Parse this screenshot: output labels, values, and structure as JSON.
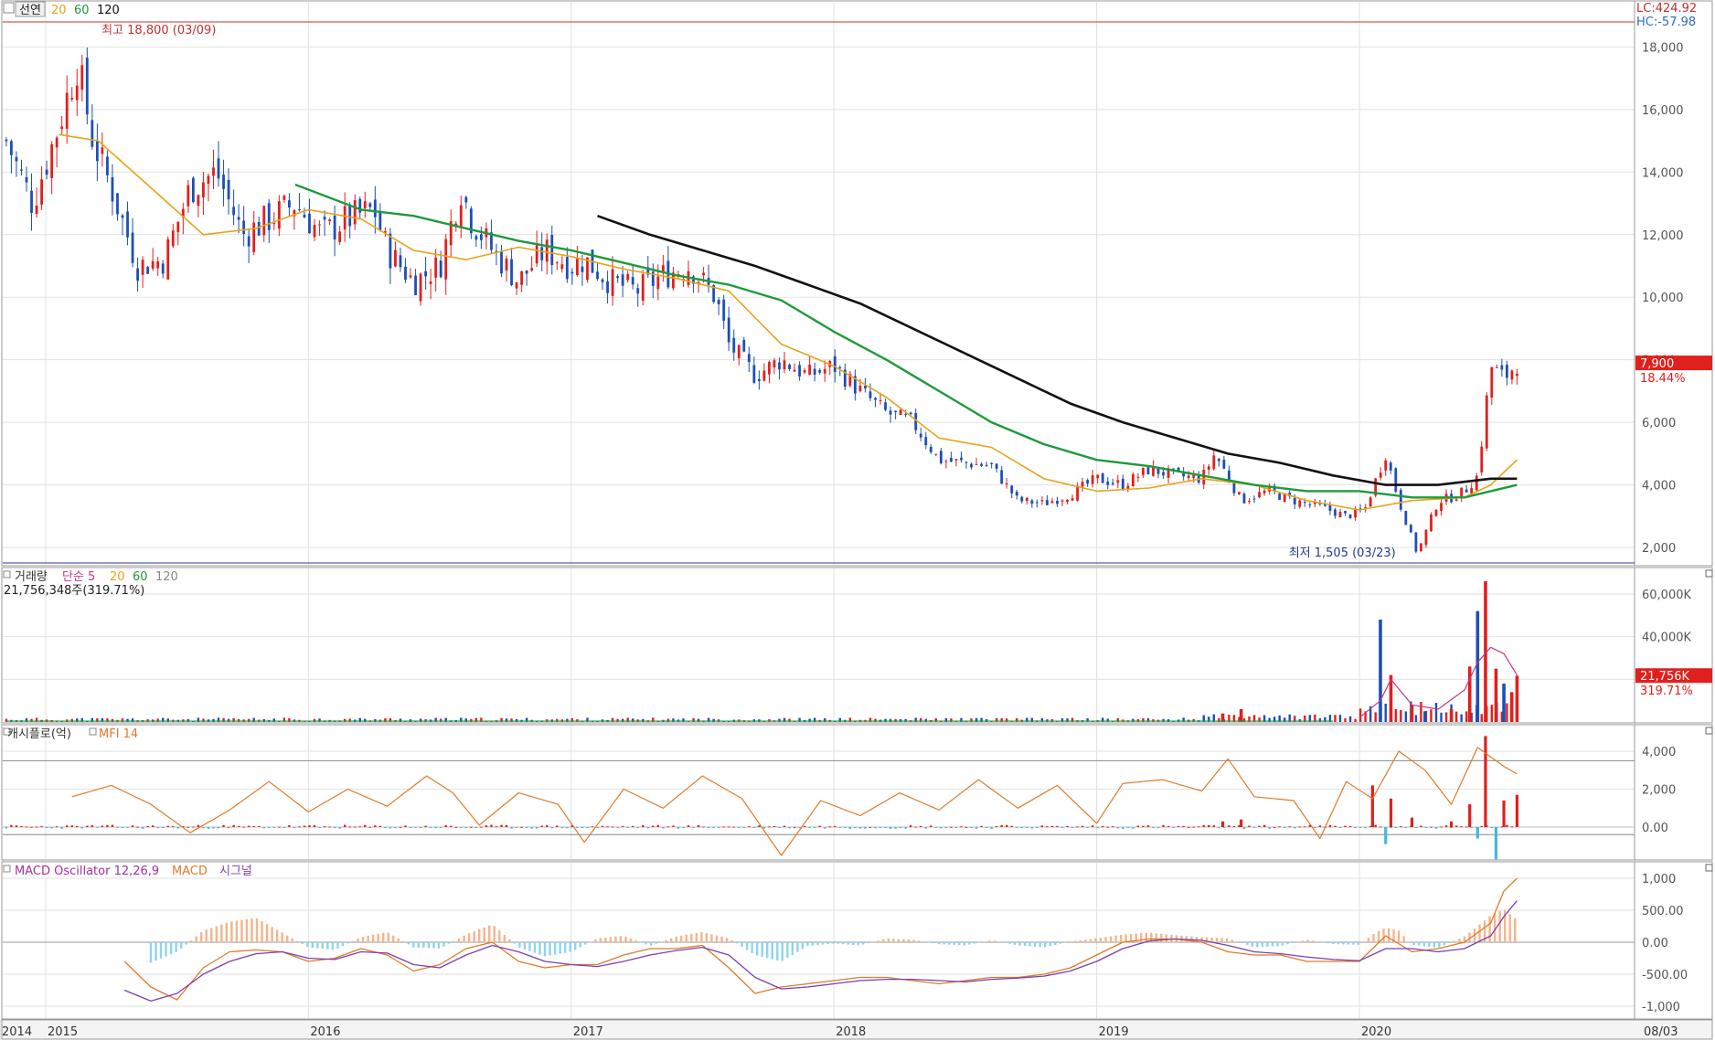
{
  "price_panel": {
    "tab_label": "선연",
    "ma_labels": [
      "20",
      "60",
      "120"
    ],
    "high_label": "최고 18,800 (03/09)",
    "low_label": "최저 1,505 (03/23)",
    "lc_label": "LC:424.92",
    "hc_label": "HC:-57.98",
    "last_price_label": "7,900",
    "last_change_label": "18.44%"
  },
  "volume_panel": {
    "title": "거래량",
    "ma_labels": [
      "단순 5",
      "20",
      "60",
      "120"
    ],
    "value_text": "21,756,348주(319.71%)",
    "last_label": "21,756K",
    "last_pct_label": "319.71%"
  },
  "cashflow_panel": {
    "title": "캐시플로(억)",
    "mfi_label": "MFI 14"
  },
  "macd_panel": {
    "title": "MACD Oscillator 12,26,9",
    "macd_label": "MACD",
    "signal_label": "시그널"
  },
  "x_axis": {
    "labels": [
      "2014",
      "2015",
      "2016",
      "2017",
      "2018",
      "2019",
      "2020",
      "08/03"
    ]
  },
  "colors": {
    "up": "#e0201c",
    "down": "#1c4fb8",
    "ma20": "#e8a317",
    "ma60": "#1e9a3c",
    "ma120": "#111111",
    "mfi_line": "#e07a2a",
    "macd_line": "#e07a2a",
    "signal_line": "#7b3fb0",
    "osc_pos": "#f3b58b",
    "osc_neg": "#8ed4ee",
    "high_line": "#c03030",
    "low_line": "#283890"
  },
  "chart_data": [
    {
      "type": "candlestick",
      "name": "price",
      "x_range": [
        "2014-11",
        "2020-08"
      ],
      "ylim": [
        1505,
        18800
      ],
      "yticks": [
        2000,
        4000,
        6000,
        8000,
        10000,
        12000,
        14000,
        16000,
        18000
      ],
      "ytick_labels": [
        "2,000",
        "4,000",
        "6,000",
        "8,000",
        "10,000",
        "12,000",
        "14,000",
        "16,000",
        "18,000"
      ],
      "close_series": {
        "x": [
          2014.85,
          2014.95,
          2015.05,
          2015.12,
          2015.18,
          2015.25,
          2015.35,
          2015.45,
          2015.55,
          2015.65,
          2015.75,
          2015.85,
          2015.95,
          2016.05,
          2016.15,
          2016.25,
          2016.3,
          2016.4,
          2016.5,
          2016.58,
          2016.62,
          2016.7,
          2016.8,
          2016.9,
          2017.0,
          2017.05,
          2017.15,
          2017.25,
          2017.35,
          2017.45,
          2017.55,
          2017.6,
          2017.7,
          2017.8,
          2017.9,
          2018.0,
          2018.1,
          2018.2,
          2018.3,
          2018.4,
          2018.5,
          2018.6,
          2018.7,
          2018.8,
          2018.9,
          2019.0,
          2019.1,
          2019.2,
          2019.3,
          2019.4,
          2019.45,
          2019.55,
          2019.65,
          2019.75,
          2019.85,
          2019.95,
          2020.02,
          2020.1,
          2020.15,
          2020.22,
          2020.3,
          2020.35,
          2020.4,
          2020.45,
          2020.5,
          2020.55,
          2020.6
        ],
        "y": [
          15000,
          13000,
          15500,
          17500,
          15000,
          13500,
          11000,
          11200,
          13500,
          14000,
          12000,
          12500,
          13000,
          12000,
          12500,
          12800,
          11500,
          10500,
          11000,
          13500,
          12500,
          11500,
          10500,
          11500,
          11000,
          11200,
          10500,
          10200,
          10700,
          11000,
          10000,
          8500,
          7500,
          8000,
          7500,
          7800,
          7000,
          6300,
          6000,
          4800,
          4700,
          4600,
          3500,
          3400,
          3700,
          4200,
          4000,
          4500,
          4300,
          4200,
          5000,
          3500,
          3800,
          3500,
          3300,
          3000,
          3200,
          5000,
          3500,
          1800,
          3500,
          3600,
          3800,
          4300,
          7800,
          7400,
          7900
        ]
      },
      "ma20": {
        "x": [
          2015.05,
          2015.2,
          2015.4,
          2015.6,
          2015.8,
          2016.0,
          2016.2,
          2016.4,
          2016.6,
          2016.8,
          2017.0,
          2017.2,
          2017.4,
          2017.6,
          2017.8,
          2018.0,
          2018.2,
          2018.4,
          2018.6,
          2018.8,
          2019.0,
          2019.2,
          2019.4,
          2019.6,
          2019.8,
          2020.0,
          2020.2,
          2020.4,
          2020.5,
          2020.6
        ],
        "y": [
          15200,
          15000,
          13500,
          12000,
          12200,
          12800,
          12500,
          11500,
          11200,
          11600,
          11300,
          10900,
          10600,
          10200,
          8500,
          7800,
          6800,
          5500,
          5200,
          4200,
          3800,
          3900,
          4200,
          4000,
          3500,
          3200,
          3500,
          3600,
          4000,
          4800
        ]
      },
      "ma60": {
        "x": [
          2015.95,
          2016.2,
          2016.4,
          2016.6,
          2016.8,
          2017.0,
          2017.2,
          2017.4,
          2017.6,
          2017.8,
          2018.0,
          2018.2,
          2018.4,
          2018.6,
          2018.8,
          2019.0,
          2019.2,
          2019.4,
          2019.6,
          2019.8,
          2020.0,
          2020.2,
          2020.4,
          2020.6
        ],
        "y": [
          13600,
          12800,
          12600,
          12200,
          11800,
          11500,
          11100,
          10700,
          10400,
          9900,
          8900,
          8000,
          7000,
          6000,
          5300,
          4800,
          4600,
          4300,
          4000,
          3800,
          3800,
          3600,
          3600,
          4000
        ]
      },
      "ma120": {
        "x": [
          2017.1,
          2017.3,
          2017.5,
          2017.7,
          2017.9,
          2018.1,
          2018.3,
          2018.5,
          2018.7,
          2018.9,
          2019.1,
          2019.3,
          2019.5,
          2019.7,
          2019.9,
          2020.1,
          2020.3,
          2020.5,
          2020.6
        ],
        "y": [
          12600,
          12000,
          11500,
          11000,
          10400,
          9800,
          9000,
          8200,
          7400,
          6600,
          6000,
          5500,
          5000,
          4700,
          4300,
          4000,
          4000,
          4200,
          4200
        ]
      },
      "high": {
        "x": 2015.15,
        "y": 18800
      },
      "low": {
        "x": 2020.18,
        "y": 1505
      }
    },
    {
      "type": "bar",
      "name": "volume",
      "ylim": [
        0,
        70000
      ],
      "yticks": [
        20000,
        40000,
        60000
      ],
      "ytick_labels": [
        "",
        "40,000K",
        "60,000K"
      ],
      "spikes": {
        "x": [
          2019.48,
          2019.55,
          2020.08,
          2020.12,
          2020.2,
          2020.25,
          2020.35,
          2020.42,
          2020.45,
          2020.48,
          2020.52,
          2020.55,
          2020.58,
          2020.6
        ],
        "y": [
          4000,
          6000,
          48000,
          22000,
          8000,
          5000,
          6000,
          26000,
          52000,
          66000,
          25000,
          18000,
          14000,
          21756
        ]
      },
      "ma5": {
        "x": [
          2020.0,
          2020.08,
          2020.12,
          2020.2,
          2020.3,
          2020.4,
          2020.45,
          2020.5,
          2020.55,
          2020.6
        ],
        "y": [
          2000,
          10000,
          20000,
          8000,
          6000,
          15000,
          28000,
          35000,
          32000,
          22000
        ]
      }
    },
    {
      "type": "bar",
      "name": "cashflow_mfi",
      "ylim": [
        -1700,
        5000
      ],
      "yticks": [
        0,
        2000,
        4000
      ],
      "ytick_labels": [
        "0.00",
        "2,000",
        "4,000"
      ],
      "mfi": {
        "x": [
          2015.1,
          2015.25,
          2015.4,
          2015.55,
          2015.7,
          2015.85,
          2016.0,
          2016.15,
          2016.3,
          2016.45,
          2016.55,
          2016.65,
          2016.8,
          2016.95,
          2017.05,
          2017.2,
          2017.35,
          2017.5,
          2017.65,
          2017.8,
          2017.95,
          2018.1,
          2018.25,
          2018.4,
          2018.55,
          2018.7,
          2018.85,
          2019.0,
          2019.1,
          2019.25,
          2019.4,
          2019.5,
          2019.6,
          2019.75,
          2019.85,
          2019.95,
          2020.05,
          2020.15,
          2020.25,
          2020.35,
          2020.45,
          2020.55,
          2020.6
        ],
        "y": [
          1600,
          2200,
          1200,
          -300,
          900,
          2400,
          800,
          2000,
          1100,
          2700,
          1800,
          100,
          1800,
          1200,
          -800,
          2000,
          1000,
          2700,
          1500,
          -1500,
          1400,
          600,
          1800,
          900,
          2500,
          1000,
          2200,
          200,
          2300,
          2500,
          1900,
          3600,
          1600,
          1400,
          -600,
          2400,
          1500,
          4000,
          3000,
          1200,
          4200,
          3200,
          2800
        ]
      },
      "cashflow": {
        "x": [
          2019.48,
          2019.55,
          2020.05,
          2020.1,
          2020.12,
          2020.2,
          2020.35,
          2020.42,
          2020.45,
          2020.48,
          2020.52,
          2020.55,
          2020.6
        ],
        "y": [
          300,
          400,
          2200,
          -900,
          1500,
          500,
          300,
          1200,
          -600,
          4800,
          -1700,
          1400,
          1700
        ]
      }
    },
    {
      "type": "bar",
      "name": "macd",
      "ylim": [
        -1150,
        1050
      ],
      "yticks": [
        -1000,
        -500,
        0,
        500,
        1000
      ],
      "ytick_labels": [
        "-1,000",
        "-500.00",
        "0.00",
        "500.00",
        "1,000"
      ],
      "oscillator": {
        "x": [
          2015.4,
          2015.5,
          2015.6,
          2015.7,
          2015.8,
          2015.9,
          2016.0,
          2016.1,
          2016.2,
          2016.3,
          2016.4,
          2016.5,
          2016.6,
          2016.7,
          2016.8,
          2016.9,
          2017.0,
          2017.1,
          2017.2,
          2017.3,
          2017.4,
          2017.5,
          2017.6,
          2017.7,
          2017.8,
          2017.9,
          2018.0,
          2018.1,
          2018.2,
          2018.3,
          2018.4,
          2018.5,
          2018.6,
          2018.7,
          2018.8,
          2018.9,
          2019.0,
          2019.1,
          2019.2,
          2019.3,
          2019.4,
          2019.5,
          2019.6,
          2019.7,
          2019.8,
          2019.9,
          2020.0,
          2020.05,
          2020.1,
          2020.15,
          2020.2,
          2020.3,
          2020.4,
          2020.45,
          2020.5,
          2020.55,
          2020.6
        ],
        "y": [
          -320,
          -150,
          180,
          320,
          380,
          150,
          -80,
          -120,
          80,
          160,
          -80,
          -100,
          120,
          280,
          -80,
          -220,
          -150,
          60,
          100,
          -60,
          90,
          160,
          60,
          -200,
          -300,
          -60,
          -20,
          -50,
          60,
          40,
          -30,
          -50,
          30,
          -50,
          -80,
          10,
          60,
          120,
          150,
          110,
          80,
          60,
          -80,
          -60,
          40,
          -30,
          -40,
          120,
          230,
          180,
          -40,
          -90,
          90,
          250,
          420,
          520,
          350
        ]
      },
      "macd_line": {
        "x": [
          2015.3,
          2015.4,
          2015.5,
          2015.6,
          2015.7,
          2015.8,
          2015.9,
          2016.0,
          2016.1,
          2016.2,
          2016.3,
          2016.4,
          2016.5,
          2016.6,
          2016.7,
          2016.8,
          2016.9,
          2017.0,
          2017.1,
          2017.2,
          2017.3,
          2017.4,
          2017.5,
          2017.6,
          2017.7,
          2017.8,
          2017.9,
          2018.0,
          2018.1,
          2018.2,
          2018.3,
          2018.4,
          2018.5,
          2018.6,
          2018.7,
          2018.8,
          2018.9,
          2019.0,
          2019.1,
          2019.2,
          2019.3,
          2019.4,
          2019.5,
          2019.6,
          2019.7,
          2019.8,
          2019.9,
          2020.0,
          2020.1,
          2020.2,
          2020.3,
          2020.4,
          2020.5,
          2020.55,
          2020.6
        ],
        "y": [
          -300,
          -700,
          -900,
          -400,
          -150,
          -120,
          -150,
          -300,
          -250,
          -100,
          -200,
          -450,
          -350,
          -100,
          0,
          -300,
          -400,
          -350,
          -350,
          -200,
          -100,
          -100,
          -50,
          -400,
          -800,
          -700,
          -650,
          -600,
          -550,
          -550,
          -600,
          -650,
          -600,
          -550,
          -550,
          -500,
          -400,
          -200,
          0,
          50,
          50,
          0,
          -150,
          -200,
          -200,
          -300,
          -300,
          -300,
          100,
          -150,
          -100,
          0,
          300,
          800,
          1000
        ]
      },
      "signal_line": {
        "x": [
          2015.3,
          2015.4,
          2015.5,
          2015.6,
          2015.7,
          2015.8,
          2015.9,
          2016.0,
          2016.1,
          2016.2,
          2016.3,
          2016.4,
          2016.5,
          2016.6,
          2016.7,
          2016.8,
          2016.9,
          2017.0,
          2017.1,
          2017.2,
          2017.3,
          2017.4,
          2017.5,
          2017.6,
          2017.7,
          2017.8,
          2017.9,
          2018.0,
          2018.1,
          2018.2,
          2018.3,
          2018.4,
          2018.5,
          2018.6,
          2018.7,
          2018.8,
          2018.9,
          2019.0,
          2019.1,
          2019.2,
          2019.3,
          2019.4,
          2019.5,
          2019.6,
          2019.7,
          2019.8,
          2019.9,
          2020.0,
          2020.1,
          2020.2,
          2020.3,
          2020.4,
          2020.5,
          2020.55,
          2020.6
        ],
        "y": [
          -750,
          -920,
          -800,
          -500,
          -300,
          -180,
          -150,
          -250,
          -270,
          -150,
          -170,
          -350,
          -400,
          -200,
          -50,
          -150,
          -300,
          -350,
          -380,
          -300,
          -200,
          -130,
          -80,
          -200,
          -550,
          -730,
          -700,
          -650,
          -600,
          -580,
          -580,
          -600,
          -620,
          -580,
          -560,
          -530,
          -450,
          -300,
          -100,
          20,
          50,
          30,
          -50,
          -150,
          -180,
          -230,
          -270,
          -290,
          -100,
          -100,
          -150,
          -100,
          100,
          400,
          650
        ]
      }
    }
  ]
}
